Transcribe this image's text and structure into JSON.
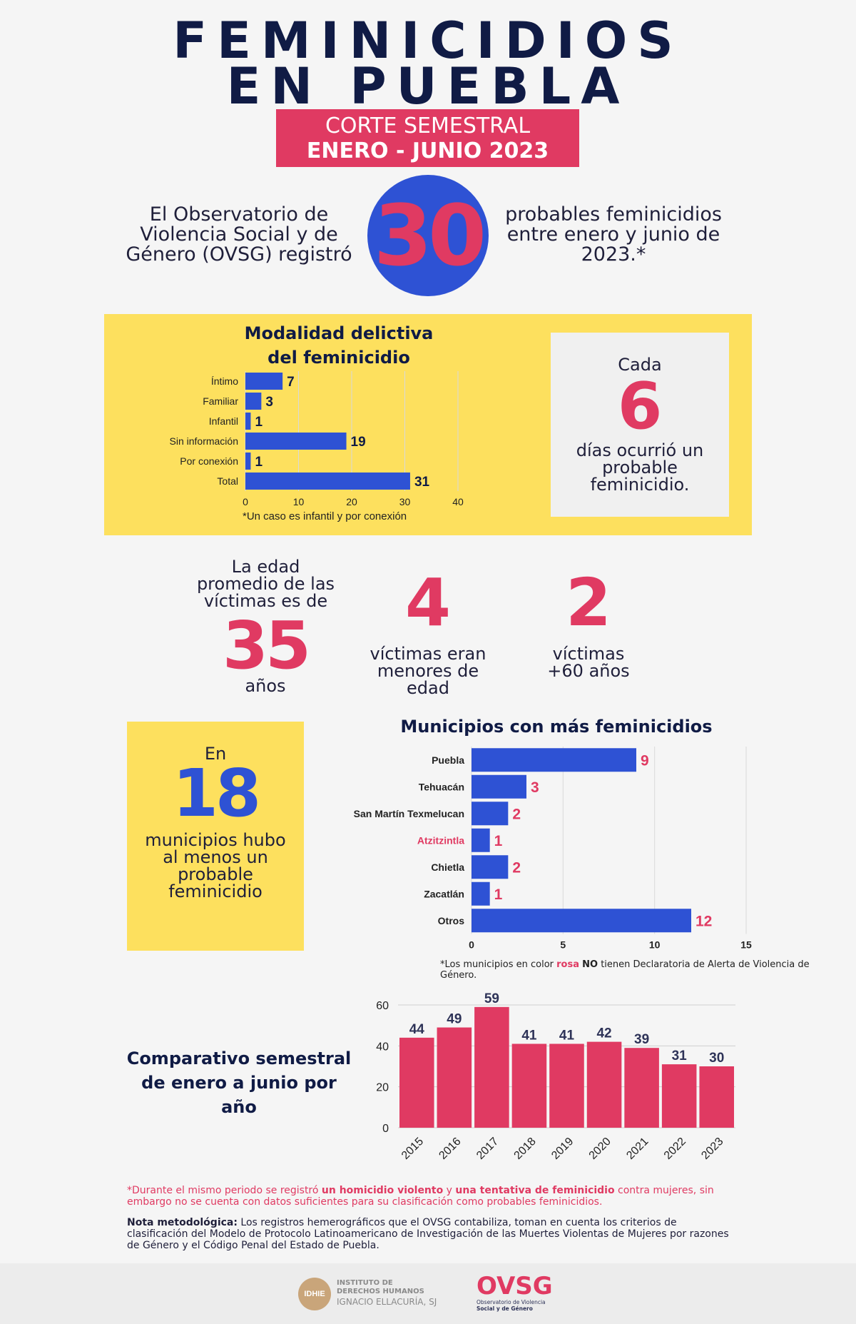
{
  "header": {
    "title_line1": "FEMINICIDIOS",
    "title_line2": "EN PUEBLA",
    "banner_line1": "CORTE SEMESTRAL",
    "banner_line2": "ENERO - JUNIO 2023"
  },
  "intro": {
    "left_text": "El Observatorio de Violencia Social y de Género (OVSG) registró",
    "number": "30",
    "right_text": "probables feminicidios entre enero y junio de 2023.*"
  },
  "modalidad": {
    "title_line1": "Modalidad delictiva",
    "title_line2": "del feminicidio",
    "note": "*Un caso es infantil y por conexión",
    "colors": {
      "bar": "#2e52d4"
    }
  },
  "cada": {
    "pre": "Cada",
    "number": "6",
    "post": "días ocurrió un probable feminicidio."
  },
  "stats": {
    "edad_pre": "La edad promedio de las víctimas es de",
    "edad_number": "35",
    "edad_post": "años",
    "menores_number": "4",
    "menores_text": "víctimas eran menores de edad",
    "mayores_number": "2",
    "mayores_text": "víctimas +60 años"
  },
  "municipios_box": {
    "pre": "En",
    "number": "18",
    "post": "municipios hubo al menos un probable feminicidio"
  },
  "municipios": {
    "title": "Municipios con más feminicidios",
    "note_pre": "*Los municipios en color ",
    "note_pink": "rosa",
    "note_mid": " ",
    "note_bold": "NO",
    "note_post": " tienen Declaratoria de Alerta de Violencia de Género."
  },
  "comparativo": {
    "title_line1": "Comparativo semestral",
    "title_line2": "de enero a junio por año"
  },
  "footnotes": {
    "star_pre": "*Durante el mismo periodo se registró ",
    "star_b1": "un homicidio violento",
    "star_mid": " y ",
    "star_b2": "una tentativa de feminicidio",
    "star_post": " contra mujeres, sin embargo no se cuenta con datos suficientes para su clasificación como probables feminicidios.",
    "nota_label": "Nota metodológica:",
    "nota_text": " Los registros hemerográficos que el OVSG contabiliza, toman en cuenta los criterios de clasificación del Modelo de Protocolo Latinoamericano de Investigación de las Muertes Violentas de Mujeres por razones de Género y el Código Penal del Estado de Puebla."
  },
  "logos": {
    "idhie_mark": "IDHIE",
    "idhie_line1": "INSTITUTO DE",
    "idhie_line2": "DERECHOS HUMANOS",
    "idhie_line3": "IGNACIO ELLACURÍA, SJ",
    "ovsg_mark": "OVSG",
    "ovsg_line1": "Observatorio de Violencia",
    "ovsg_line2": "Social y de Género"
  },
  "chart_data": [
    {
      "type": "bar",
      "orientation": "horizontal",
      "title": "Modalidad delictiva del feminicidio",
      "categories": [
        "Íntimo",
        "Familiar",
        "Infantil",
        "Sin información",
        "Por conexión",
        "Total"
      ],
      "values": [
        7,
        3,
        1,
        19,
        1,
        31
      ],
      "xlim": [
        0,
        40
      ],
      "xticks": [
        0,
        10,
        20,
        30,
        40
      ],
      "grid": true,
      "colors": {
        "bar": "#2e52d4",
        "label": "#101b45"
      }
    },
    {
      "type": "bar",
      "orientation": "horizontal",
      "title": "Municipios con más feminicidios",
      "categories": [
        "Puebla",
        "Tehuacán",
        "San Martín Texmelucan",
        "Atzitzintla",
        "Chietla",
        "Zacatlán",
        "Otros"
      ],
      "values": [
        9,
        3,
        2,
        1,
        2,
        1,
        12
      ],
      "highlight": [
        false,
        false,
        false,
        true,
        false,
        false,
        false
      ],
      "xlim": [
        0,
        15
      ],
      "xticks": [
        0,
        5,
        10,
        15
      ],
      "grid": true,
      "colors": {
        "bar": "#2e52d4",
        "label": "#e03a62",
        "highlight_label": "#e03a62"
      }
    },
    {
      "type": "bar",
      "title": "Comparativo semestral de enero a junio por año",
      "categories": [
        "2015",
        "2016",
        "2017",
        "2018",
        "2019",
        "2020",
        "2021",
        "2022",
        "2023"
      ],
      "values": [
        44,
        49,
        59,
        41,
        41,
        42,
        39,
        31,
        30
      ],
      "ylim": [
        0,
        60
      ],
      "yticks": [
        0,
        20,
        40,
        60
      ],
      "grid": true,
      "colors": {
        "bar": "#e03a62",
        "label": "#2e3358"
      }
    }
  ]
}
